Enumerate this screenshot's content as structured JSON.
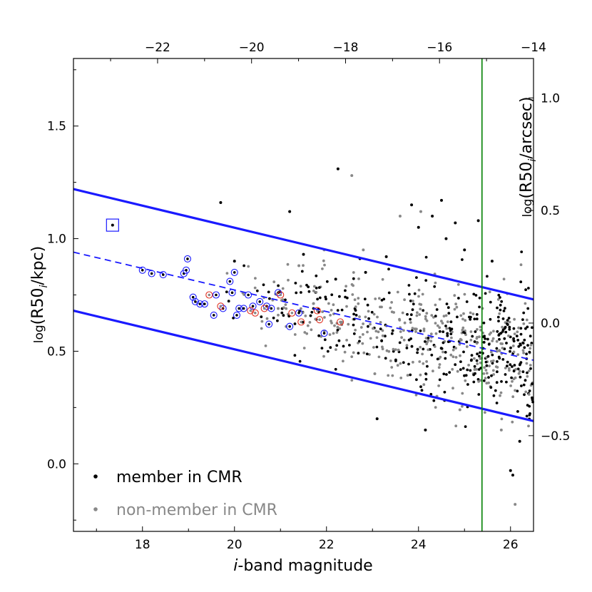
{
  "chart_data": {
    "type": "scatter",
    "title": "",
    "xlabel_italic": "i",
    "xlabel_rest": "-band magnitude",
    "ylabel_left": {
      "pre": "log",
      "main": "(R50",
      "sub": "i",
      "post": "/kpc)"
    },
    "ylabel_right": {
      "pre": "log",
      "main": "(R50",
      "sub": "i",
      "post": "/arcsec)"
    },
    "xlim": [
      16.5,
      26.5
    ],
    "ylim": [
      -0.3,
      1.8
    ],
    "top_xlim": [
      -23.79,
      -14.0
    ],
    "right_ylim": [
      -0.925,
      1.175
    ],
    "x_ticks": [
      {
        "v": 18,
        "label": "18"
      },
      {
        "v": 20,
        "label": "20"
      },
      {
        "v": 22,
        "label": "22"
      },
      {
        "v": 24,
        "label": "24"
      },
      {
        "v": 26,
        "label": "26"
      }
    ],
    "y_ticks": [
      {
        "v": 0.0,
        "label": "0.0"
      },
      {
        "v": 0.5,
        "label": "0.5"
      },
      {
        "v": 1.0,
        "label": "1.0"
      },
      {
        "v": 1.5,
        "label": "1.5"
      }
    ],
    "top_ticks": [
      {
        "v": -22,
        "label": "−22"
      },
      {
        "v": -20,
        "label": "−20"
      },
      {
        "v": -18,
        "label": "−18"
      },
      {
        "v": -16,
        "label": "−16"
      },
      {
        "v": -14,
        "label": "−14"
      }
    ],
    "right_ticks": [
      {
        "v": -0.5,
        "label": "−0.5"
      },
      {
        "v": 0.0,
        "label": "0.0"
      },
      {
        "v": 0.5,
        "label": "0.5"
      },
      {
        "v": 1.0,
        "label": "1.0"
      }
    ],
    "legend": [
      {
        "label": "member in CMR",
        "color": "#000000"
      },
      {
        "label": "non-member in CMR",
        "color": "#888888"
      }
    ],
    "colors": {
      "member": "#000000",
      "nonmember": "#888888",
      "fit": "#1a1aff",
      "cut": "#008000",
      "red_ring": "#e03020",
      "blue_ring": "#1a1aff"
    },
    "fit_line": {
      "x": [
        16.5,
        26.5
      ],
      "y": [
        0.94,
        0.46
      ]
    },
    "upper_line": {
      "x": [
        16.5,
        26.5
      ],
      "y": [
        1.22,
        0.73
      ]
    },
    "lower_line": {
      "x": [
        16.5,
        26.5
      ],
      "y": [
        0.68,
        0.19
      ]
    },
    "vertical_cut_x": 25.38,
    "boxed_point": {
      "x": 17.35,
      "y": 1.06
    },
    "blue_circled": [
      [
        18.0,
        0.86
      ],
      [
        18.2,
        0.845
      ],
      [
        18.45,
        0.84
      ],
      [
        18.9,
        0.845
      ],
      [
        18.95,
        0.86
      ],
      [
        18.98,
        0.91
      ],
      [
        19.1,
        0.74
      ],
      [
        19.15,
        0.72
      ],
      [
        19.25,
        0.71
      ],
      [
        19.35,
        0.71
      ],
      [
        19.55,
        0.66
      ],
      [
        19.6,
        0.75
      ],
      [
        19.75,
        0.69
      ],
      [
        19.9,
        0.81
      ],
      [
        19.95,
        0.76
      ],
      [
        20.0,
        0.85
      ],
      [
        20.05,
        0.66
      ],
      [
        20.1,
        0.69
      ],
      [
        20.2,
        0.69
      ],
      [
        20.3,
        0.75
      ],
      [
        20.4,
        0.7
      ],
      [
        20.55,
        0.72
      ],
      [
        20.7,
        0.7
      ],
      [
        20.75,
        0.62
      ],
      [
        20.8,
        0.69
      ],
      [
        21.2,
        0.61
      ],
      [
        21.4,
        0.67
      ],
      [
        21.95,
        0.58
      ],
      [
        20.95,
        0.76
      ]
    ],
    "red_circled": [
      [
        19.45,
        0.75
      ],
      [
        19.7,
        0.7
      ],
      [
        20.35,
        0.68
      ],
      [
        20.45,
        0.67
      ],
      [
        20.65,
        0.69
      ],
      [
        21.0,
        0.75
      ],
      [
        21.25,
        0.67
      ],
      [
        21.45,
        0.63
      ],
      [
        21.8,
        0.68
      ],
      [
        21.85,
        0.64
      ],
      [
        22.3,
        0.63
      ]
    ],
    "members": [
      [
        17.35,
        1.06
      ],
      [
        19.7,
        1.16
      ],
      [
        20.0,
        0.9
      ],
      [
        21.2,
        1.12
      ],
      [
        21.5,
        0.93
      ],
      [
        22.25,
        1.31
      ],
      [
        23.1,
        0.2
      ],
      [
        24.15,
        0.15
      ],
      [
        26.0,
        -0.03
      ],
      [
        26.05,
        -0.05
      ],
      [
        26.2,
        0.1
      ],
      [
        25.3,
        1.08
      ],
      [
        24.8,
        1.07
      ],
      [
        24.5,
        1.17
      ],
      [
        23.85,
        1.15
      ],
      [
        24.3,
        1.1
      ],
      [
        24.0,
        1.05
      ],
      [
        23.3,
        0.92
      ],
      [
        24.6,
        1.0
      ],
      [
        25.0,
        0.95
      ],
      [
        25.6,
        0.9
      ],
      [
        22.85,
        0.85
      ],
      [
        22.2,
        0.82
      ]
    ],
    "nonmembers": [
      [
        22.55,
        1.28
      ],
      [
        20.95,
        0.69
      ],
      [
        21.95,
        0.95
      ],
      [
        22.8,
        0.95
      ],
      [
        23.6,
        1.1
      ],
      [
        24.05,
        1.12
      ],
      [
        23.05,
        0.4
      ],
      [
        24.4,
        0.3
      ],
      [
        26.1,
        -0.18
      ],
      [
        25.8,
        0.15
      ],
      [
        24.9,
        0.24
      ],
      [
        21.4,
        0.88
      ]
    ],
    "seed": 7
  }
}
